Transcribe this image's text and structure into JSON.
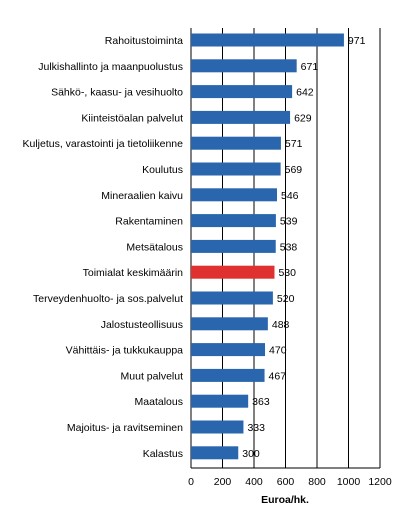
{
  "chart_data": {
    "type": "bar",
    "orientation": "horizontal",
    "categories": [
      "Rahoitustoiminta",
      "Julkishallinto ja maanpuolustus",
      "Sähkö-, kaasu- ja vesihuolto",
      "Kiinteistöalan palvelut",
      "Kuljetus, varastointi ja tietoliikenne",
      "Koulutus",
      "Mineraalien kaivu",
      "Rakentaminen",
      "Metsätalous",
      "Toimialat keskimäärin",
      "Terveydenhuolto- ja sos.palvelut",
      "Jalostusteollisuus",
      "Vähittäis- ja tukkukauppa",
      "Muut palvelut",
      "Maatalous",
      "Majoitus- ja ravitseminen",
      "Kalastus"
    ],
    "values": [
      971,
      671,
      642,
      629,
      571,
      569,
      546,
      539,
      538,
      530,
      520,
      488,
      470,
      467,
      363,
      333,
      300
    ],
    "highlight_category": "Toimialat keskimäärin",
    "colors": {
      "bar": "#2a66ad",
      "highlight": "#e03131",
      "grid": "#000000"
    },
    "xlabel": "Euroa/hk.",
    "xlim": [
      0,
      1200
    ],
    "xticks": [
      0,
      200,
      400,
      600,
      800,
      1000,
      1200
    ],
    "grid": "vertical"
  }
}
